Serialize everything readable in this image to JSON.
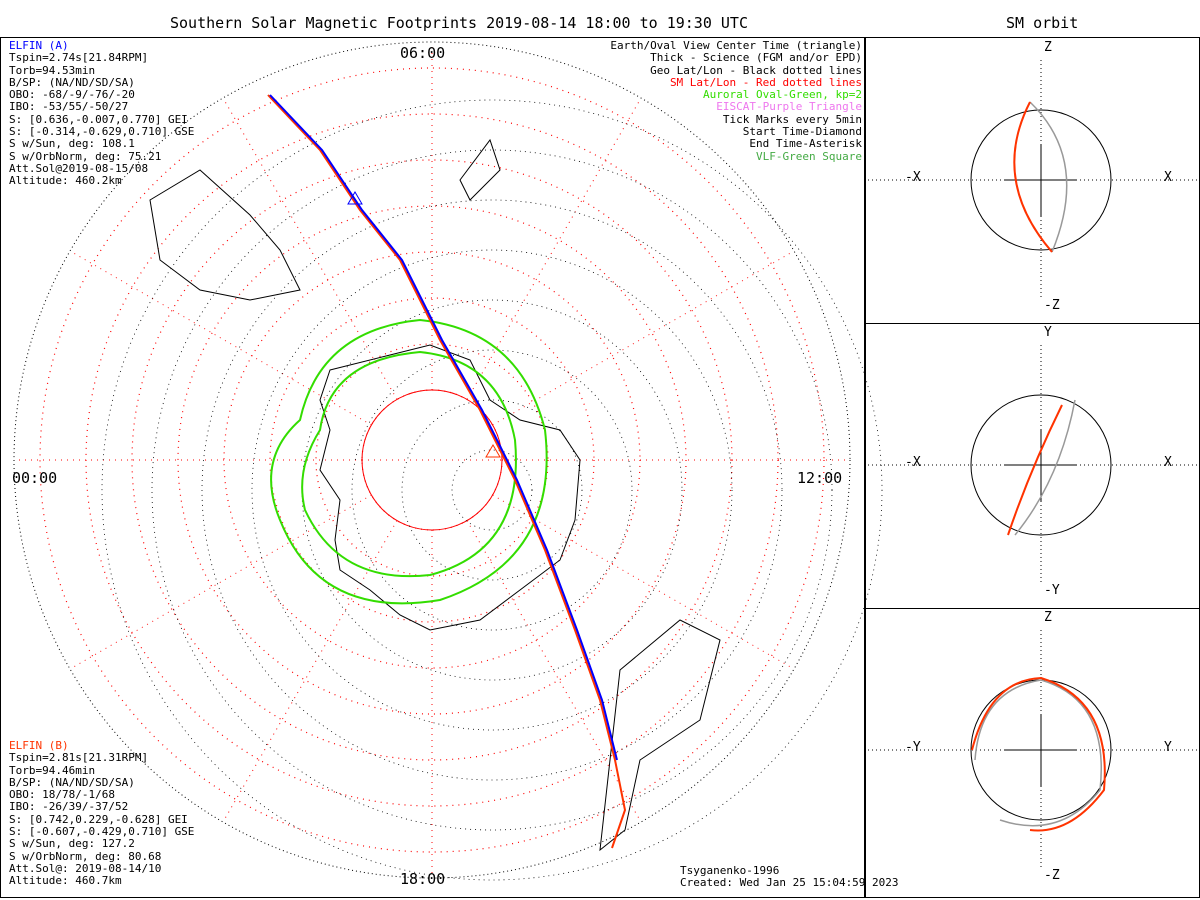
{
  "main": {
    "title": "Southern Solar Magnetic Footprints 2019-08-14 18:00 to 19:30 UTC",
    "time_labels": {
      "top": "06:00",
      "left": "00:00",
      "right": "12:00",
      "bottom": "18:00"
    },
    "elfin_a": {
      "name": "ELFIN (A)",
      "lines": [
        "Tspin=2.74s[21.84RPM]",
        "Torb=94.53min",
        "B/SP: (NA/ND/SD/SA)",
        "OBO: -68/-9/-76/-20",
        "IBO: -53/55/-50/27",
        "S: [0.636,-0.007,0.770] GEI",
        "S: [-0.314,-0.629,0.710] GSE",
        "S w/Sun, deg: 108.1",
        "S w/OrbNorm, deg: 75.21",
        "Att.Sol@2019-08-15/08",
        "Altitude: 460.2km"
      ]
    },
    "elfin_b": {
      "name": "ELFIN (B)",
      "lines": [
        "Tspin=2.81s[21.31RPM]",
        "Torb=94.46min",
        "B/SP: (NA/ND/SD/SA)",
        "OBO: 18/78/-1/68",
        "IBO: -26/39/-37/52",
        "S: [0.742,0.229,-0.628] GEI",
        "S: [-0.607,-0.429,0.710] GSE",
        "S w/Sun, deg: 127.2",
        "S w/OrbNorm, deg: 80.68",
        "Att.Sol@: 2019-08-14/10",
        "Altitude: 460.7km"
      ]
    },
    "legend": [
      {
        "text": "Earth/Oval View Center Time (triangle)",
        "color": "#000000"
      },
      {
        "text": "Thick - Science (FGM and/or EPD)",
        "color": "#000000"
      },
      {
        "text": "Geo Lat/Lon - Black dotted lines",
        "color": "#000000"
      },
      {
        "text": "SM Lat/Lon - Red dotted lines",
        "color": "#ff0000"
      },
      {
        "text": "Auroral Oval-Green, kp=2",
        "color": "#33dd00"
      },
      {
        "text": "EISCAT-Purple Triangle",
        "color": "#ee77ee"
      },
      {
        "text": "Tick Marks every 5min",
        "color": "#000000"
      },
      {
        "text": "Start Time-Diamond",
        "color": "#000000"
      },
      {
        "text": "End Time-Asterisk",
        "color": "#000000"
      },
      {
        "text": "VLF-Green Square",
        "color": "#44aa44"
      }
    ],
    "footer": [
      "Tsyganenko-1996",
      "Created: Wed Jan 25 15:04:59 2023"
    ]
  },
  "orbit": {
    "title": "SM orbit",
    "panels": [
      {
        "top": "Z",
        "bottom": "-Z",
        "left": "-X",
        "right": "X"
      },
      {
        "top": "Y",
        "bottom": "-Y",
        "left": "-X",
        "right": "X"
      },
      {
        "top": "Z",
        "bottom": "-Z",
        "left": "-Y",
        "right": "Y"
      }
    ]
  },
  "colors": {
    "elfin_a": "#0000ff",
    "elfin_b": "#ff3300",
    "oval": "#33dd00",
    "sm_grid": "#ff0000"
  }
}
